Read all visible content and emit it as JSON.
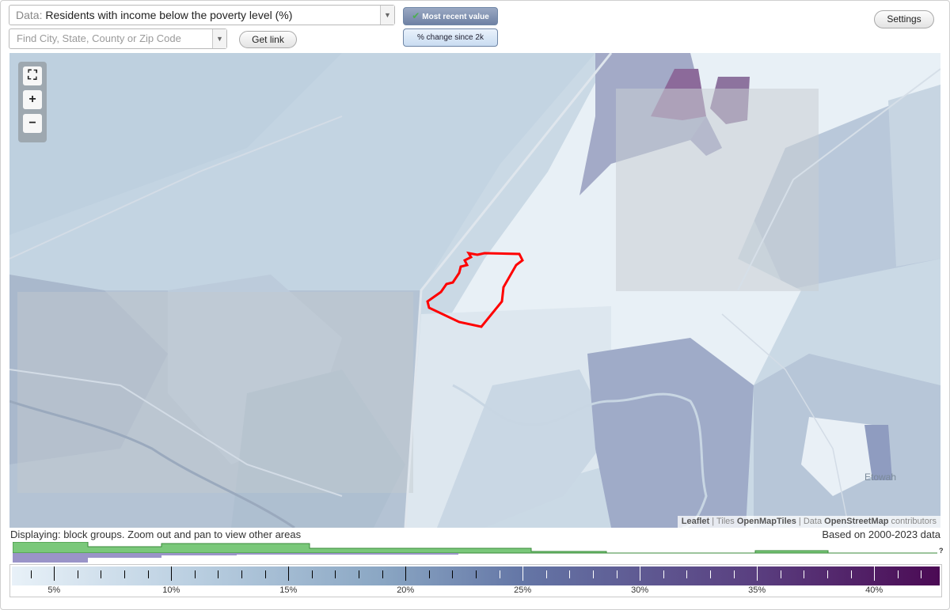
{
  "data_select": {
    "prefix": "Data:",
    "value": "Residents with income below the poverty level (%)"
  },
  "search": {
    "placeholder": "Find City, State, County or Zip Code"
  },
  "buttons": {
    "get_link": "Get link",
    "settings": "Settings"
  },
  "toggles": {
    "most_recent": "Most recent value",
    "change_since": "% change since 2k"
  },
  "map": {
    "zoom_in": "+",
    "zoom_out": "−",
    "place_label": "Etowah",
    "attribution": {
      "leaflet": "Leaflet",
      "tiles_prefix": "Tiles",
      "tiles": "OpenMapTiles",
      "data_prefix": "Data",
      "data": "OpenStreetMap",
      "contributors": "contributors"
    },
    "highlight_color": "#ff0000"
  },
  "status": {
    "displaying": "Displaying: block groups. Zoom out and pan to view other areas",
    "based_on": "Based on 2000-2023 data"
  },
  "histogram": {
    "unknown_marker": "?",
    "colors": {
      "green": "#7ac87a",
      "purple": "#9a94c8"
    }
  },
  "legend": {
    "min": 3.2,
    "max": 42.8,
    "labels": [
      "5%",
      "10%",
      "15%",
      "20%",
      "25%",
      "30%",
      "35%",
      "40%"
    ],
    "label_values": [
      5,
      10,
      15,
      20,
      25,
      30,
      35,
      40
    ]
  }
}
